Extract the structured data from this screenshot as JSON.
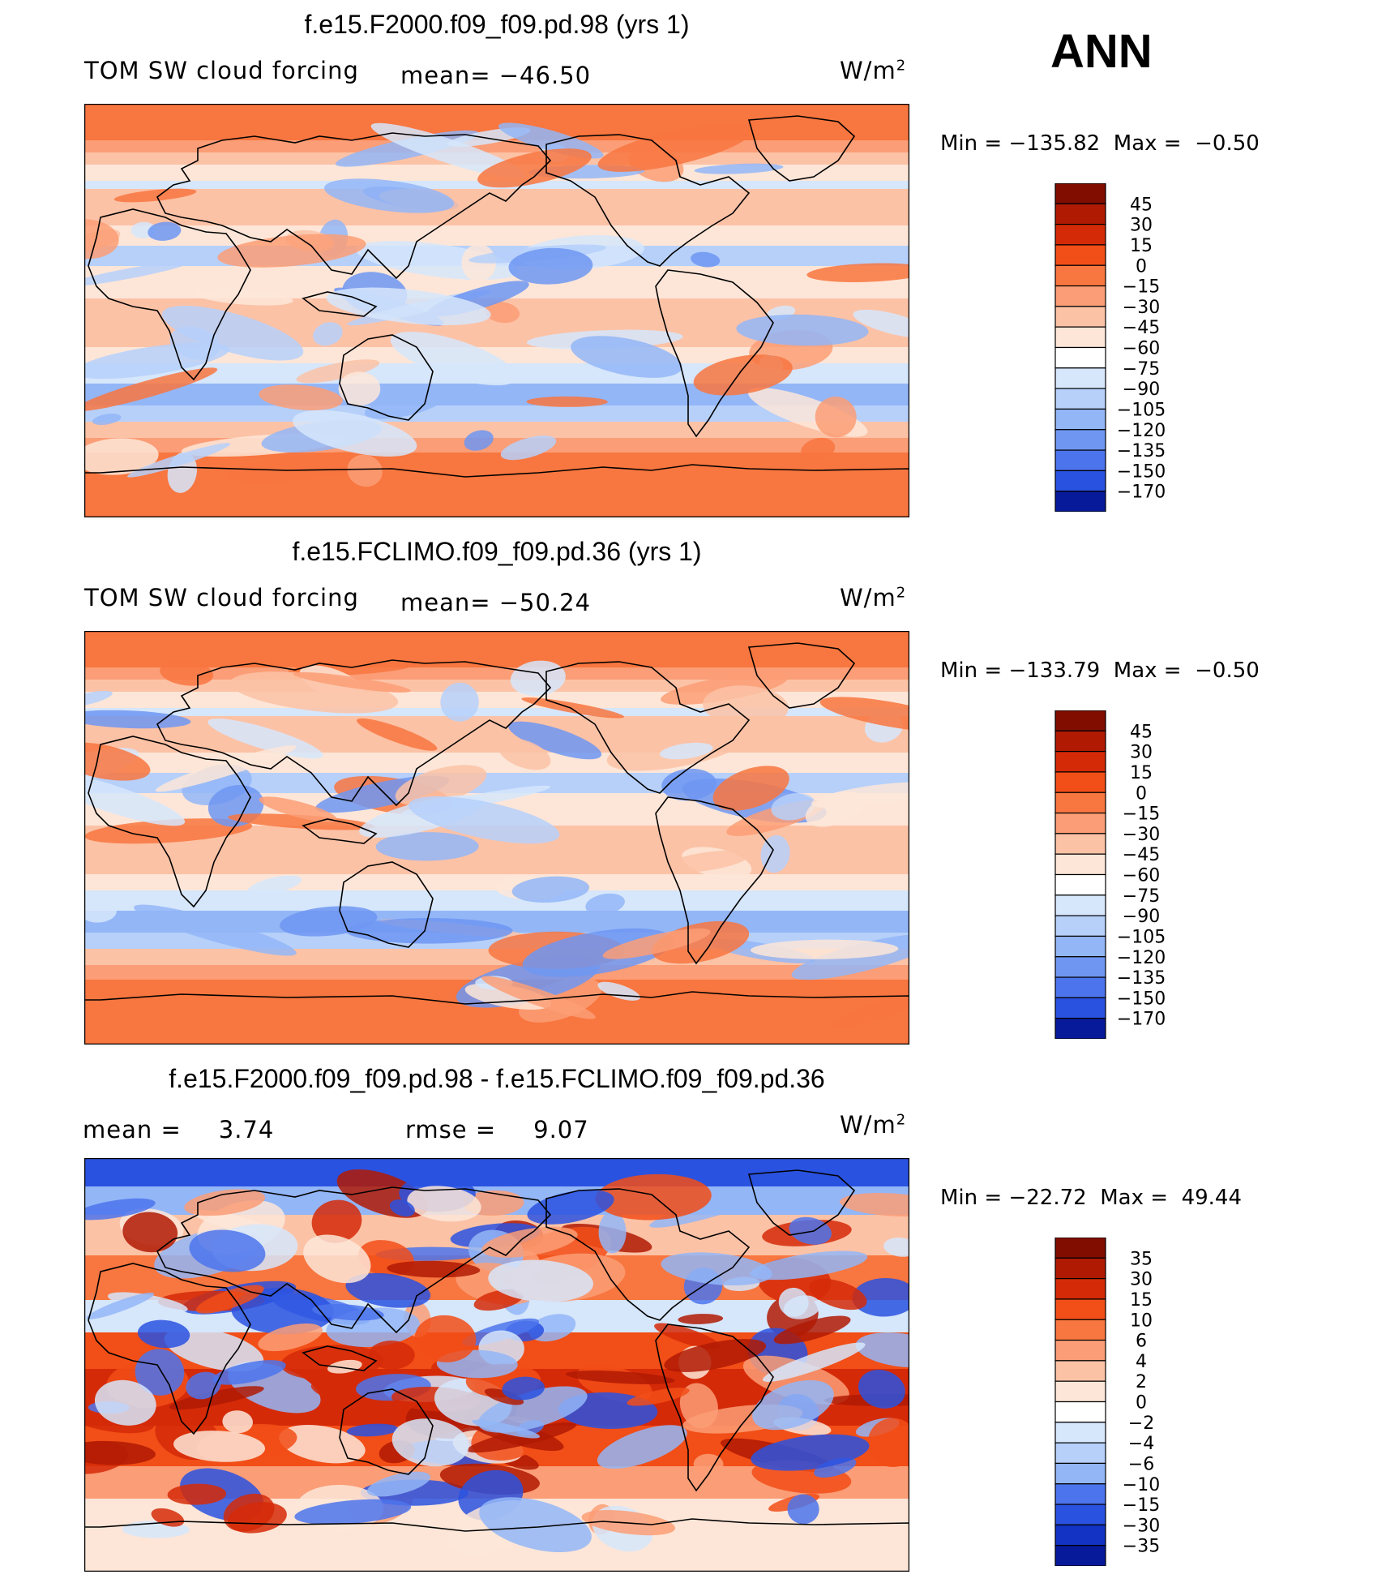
{
  "season": "ANN",
  "colors": {
    "positive": [
      "#fde6d8",
      "#fcc2a6",
      "#fb9d76",
      "#f8763f",
      "#f24e17",
      "#d52a08",
      "#b01a03",
      "#800d00"
    ],
    "negative": [
      "#d6e6fb",
      "#b6d0fa",
      "#93b6f7",
      "#6f97f2",
      "#4c74ec",
      "#2a52e0",
      "#1233c4",
      "#061a9a",
      "#000c6b"
    ],
    "coast": "#000000"
  },
  "chart_data": [
    {
      "type": "heatmap",
      "title": "f.e15.F2000.f09_f09.pd.98 (yrs 1)",
      "variable": "TOM SW cloud forcing",
      "mean_text": "mean= −46.50",
      "units_base": "W/m",
      "units_exp": "2",
      "min_label": "Min",
      "min": "−135.82",
      "max_label": "Max",
      "max": "−0.50",
      "levels": [
        "45",
        "30",
        "15",
        "0",
        "−15",
        "−30",
        "−45",
        "−60",
        "−75",
        "−90",
        "−105",
        "−120",
        "−135",
        "−150",
        "−170"
      ],
      "level_colors": [
        "#800d00",
        "#b01a03",
        "#d52a08",
        "#f24e17",
        "#f8763f",
        "#fb9d76",
        "#fcc2a6",
        "#fde6d8",
        "#ffffff",
        "#d6e6fb",
        "#b6d0fa",
        "#93b6f7",
        "#6f97f2",
        "#4c74ec",
        "#2a52e0",
        "#061a9a"
      ]
    },
    {
      "type": "heatmap",
      "title": "f.e15.FCLIMO.f09_f09.pd.36 (yrs 1)",
      "variable": "TOM SW cloud forcing",
      "mean_text": "mean= −50.24",
      "units_base": "W/m",
      "units_exp": "2",
      "min_label": "Min",
      "min": "−133.79",
      "max_label": "Max",
      "max": "−0.50",
      "levels": [
        "45",
        "30",
        "15",
        "0",
        "−15",
        "−30",
        "−45",
        "−60",
        "−75",
        "−90",
        "−105",
        "−120",
        "−135",
        "−150",
        "−170"
      ],
      "level_colors": [
        "#800d00",
        "#b01a03",
        "#d52a08",
        "#f24e17",
        "#f8763f",
        "#fb9d76",
        "#fcc2a6",
        "#fde6d8",
        "#ffffff",
        "#d6e6fb",
        "#b6d0fa",
        "#93b6f7",
        "#6f97f2",
        "#4c74ec",
        "#2a52e0",
        "#061a9a"
      ]
    },
    {
      "type": "heatmap",
      "title": "f.e15.F2000.f09_f09.pd.98 - f.e15.FCLIMO.f09_f09.pd.36",
      "mean_label": "mean =",
      "mean": "3.74",
      "rmse_label": "rmse =",
      "rmse": "9.07",
      "units_base": "W/m",
      "units_exp": "2",
      "min_label": "Min",
      "min": "−22.72",
      "max_label": "Max",
      "max": "49.44",
      "levels": [
        "35",
        "30",
        "15",
        "10",
        "6",
        "4",
        "2",
        "0",
        "−2",
        "−4",
        "−6",
        "−10",
        "−15",
        "−30",
        "−35"
      ],
      "level_colors": [
        "#800d00",
        "#b01a03",
        "#d52a08",
        "#f24e17",
        "#f8763f",
        "#fb9d76",
        "#fcc2a6",
        "#fde6d8",
        "#ffffff",
        "#d6e6fb",
        "#b6d0fa",
        "#93b6f7",
        "#4c74ec",
        "#2a52e0",
        "#1233c4",
        "#061a9a"
      ]
    }
  ]
}
